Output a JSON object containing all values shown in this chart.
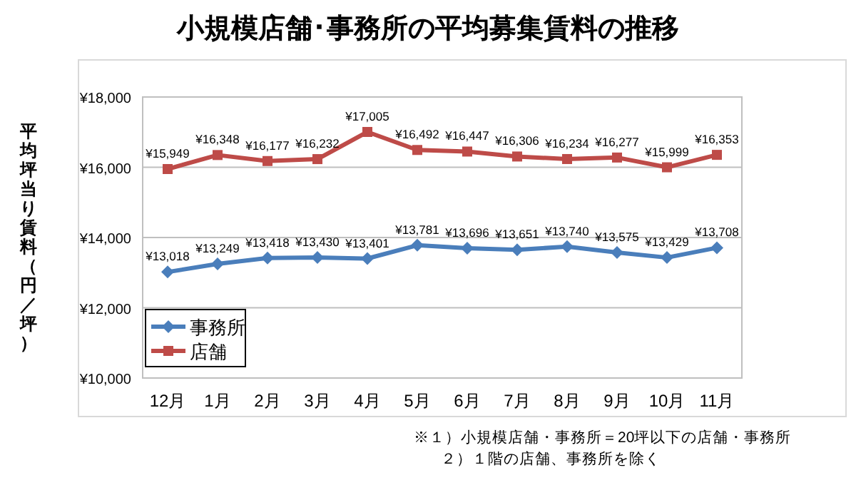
{
  "chart_data": {
    "type": "line",
    "title": "小規模店舗･事務所の平均募集賃料の推移",
    "ylabel": "平均坪当り賃料（円／坪）",
    "categories": [
      "12月",
      "1月",
      "2月",
      "3月",
      "4月",
      "5月",
      "6月",
      "7月",
      "8月",
      "9月",
      "10月",
      "11月"
    ],
    "series": [
      {
        "name": "事務所",
        "color": "#4a7ebb",
        "marker": "diamond",
        "values": [
          13018,
          13249,
          13418,
          13430,
          13401,
          13781,
          13696,
          13651,
          13740,
          13575,
          13429,
          13708
        ],
        "value_labels": [
          "¥13,018",
          "¥13,249",
          "¥13,418",
          "¥13,430",
          "¥13,401",
          "¥13,781",
          "¥13,696",
          "¥13,651",
          "¥13,740",
          "¥13,575",
          "¥13,429",
          "¥13,708"
        ]
      },
      {
        "name": "店舗",
        "color": "#be4b48",
        "marker": "square",
        "values": [
          15949,
          16348,
          16177,
          16232,
          17005,
          16492,
          16447,
          16306,
          16234,
          16277,
          15999,
          16353
        ],
        "value_labels": [
          "¥15,949",
          "¥16,348",
          "¥16,177",
          "¥16,232",
          "¥17,005",
          "¥16,492",
          "¥16,447",
          "¥16,306",
          "¥16,234",
          "¥16,277",
          "¥15,999",
          "¥16,353"
        ]
      }
    ],
    "ylim": [
      10000,
      18000
    ],
    "yticks": [
      {
        "value": 10000,
        "label": "¥10,000"
      },
      {
        "value": 12000,
        "label": "¥12,000"
      },
      {
        "value": 14000,
        "label": "¥14,000"
      },
      {
        "value": 16000,
        "label": "¥16,000"
      },
      {
        "value": 18000,
        "label": "¥18,000"
      }
    ],
    "grid": "y",
    "legend": "bottom left",
    "annotations": [
      "※１）小規模店舗・事務所＝20坪以下の店舗・事務所",
      "２）１階の店舗、事務所を除く"
    ]
  }
}
